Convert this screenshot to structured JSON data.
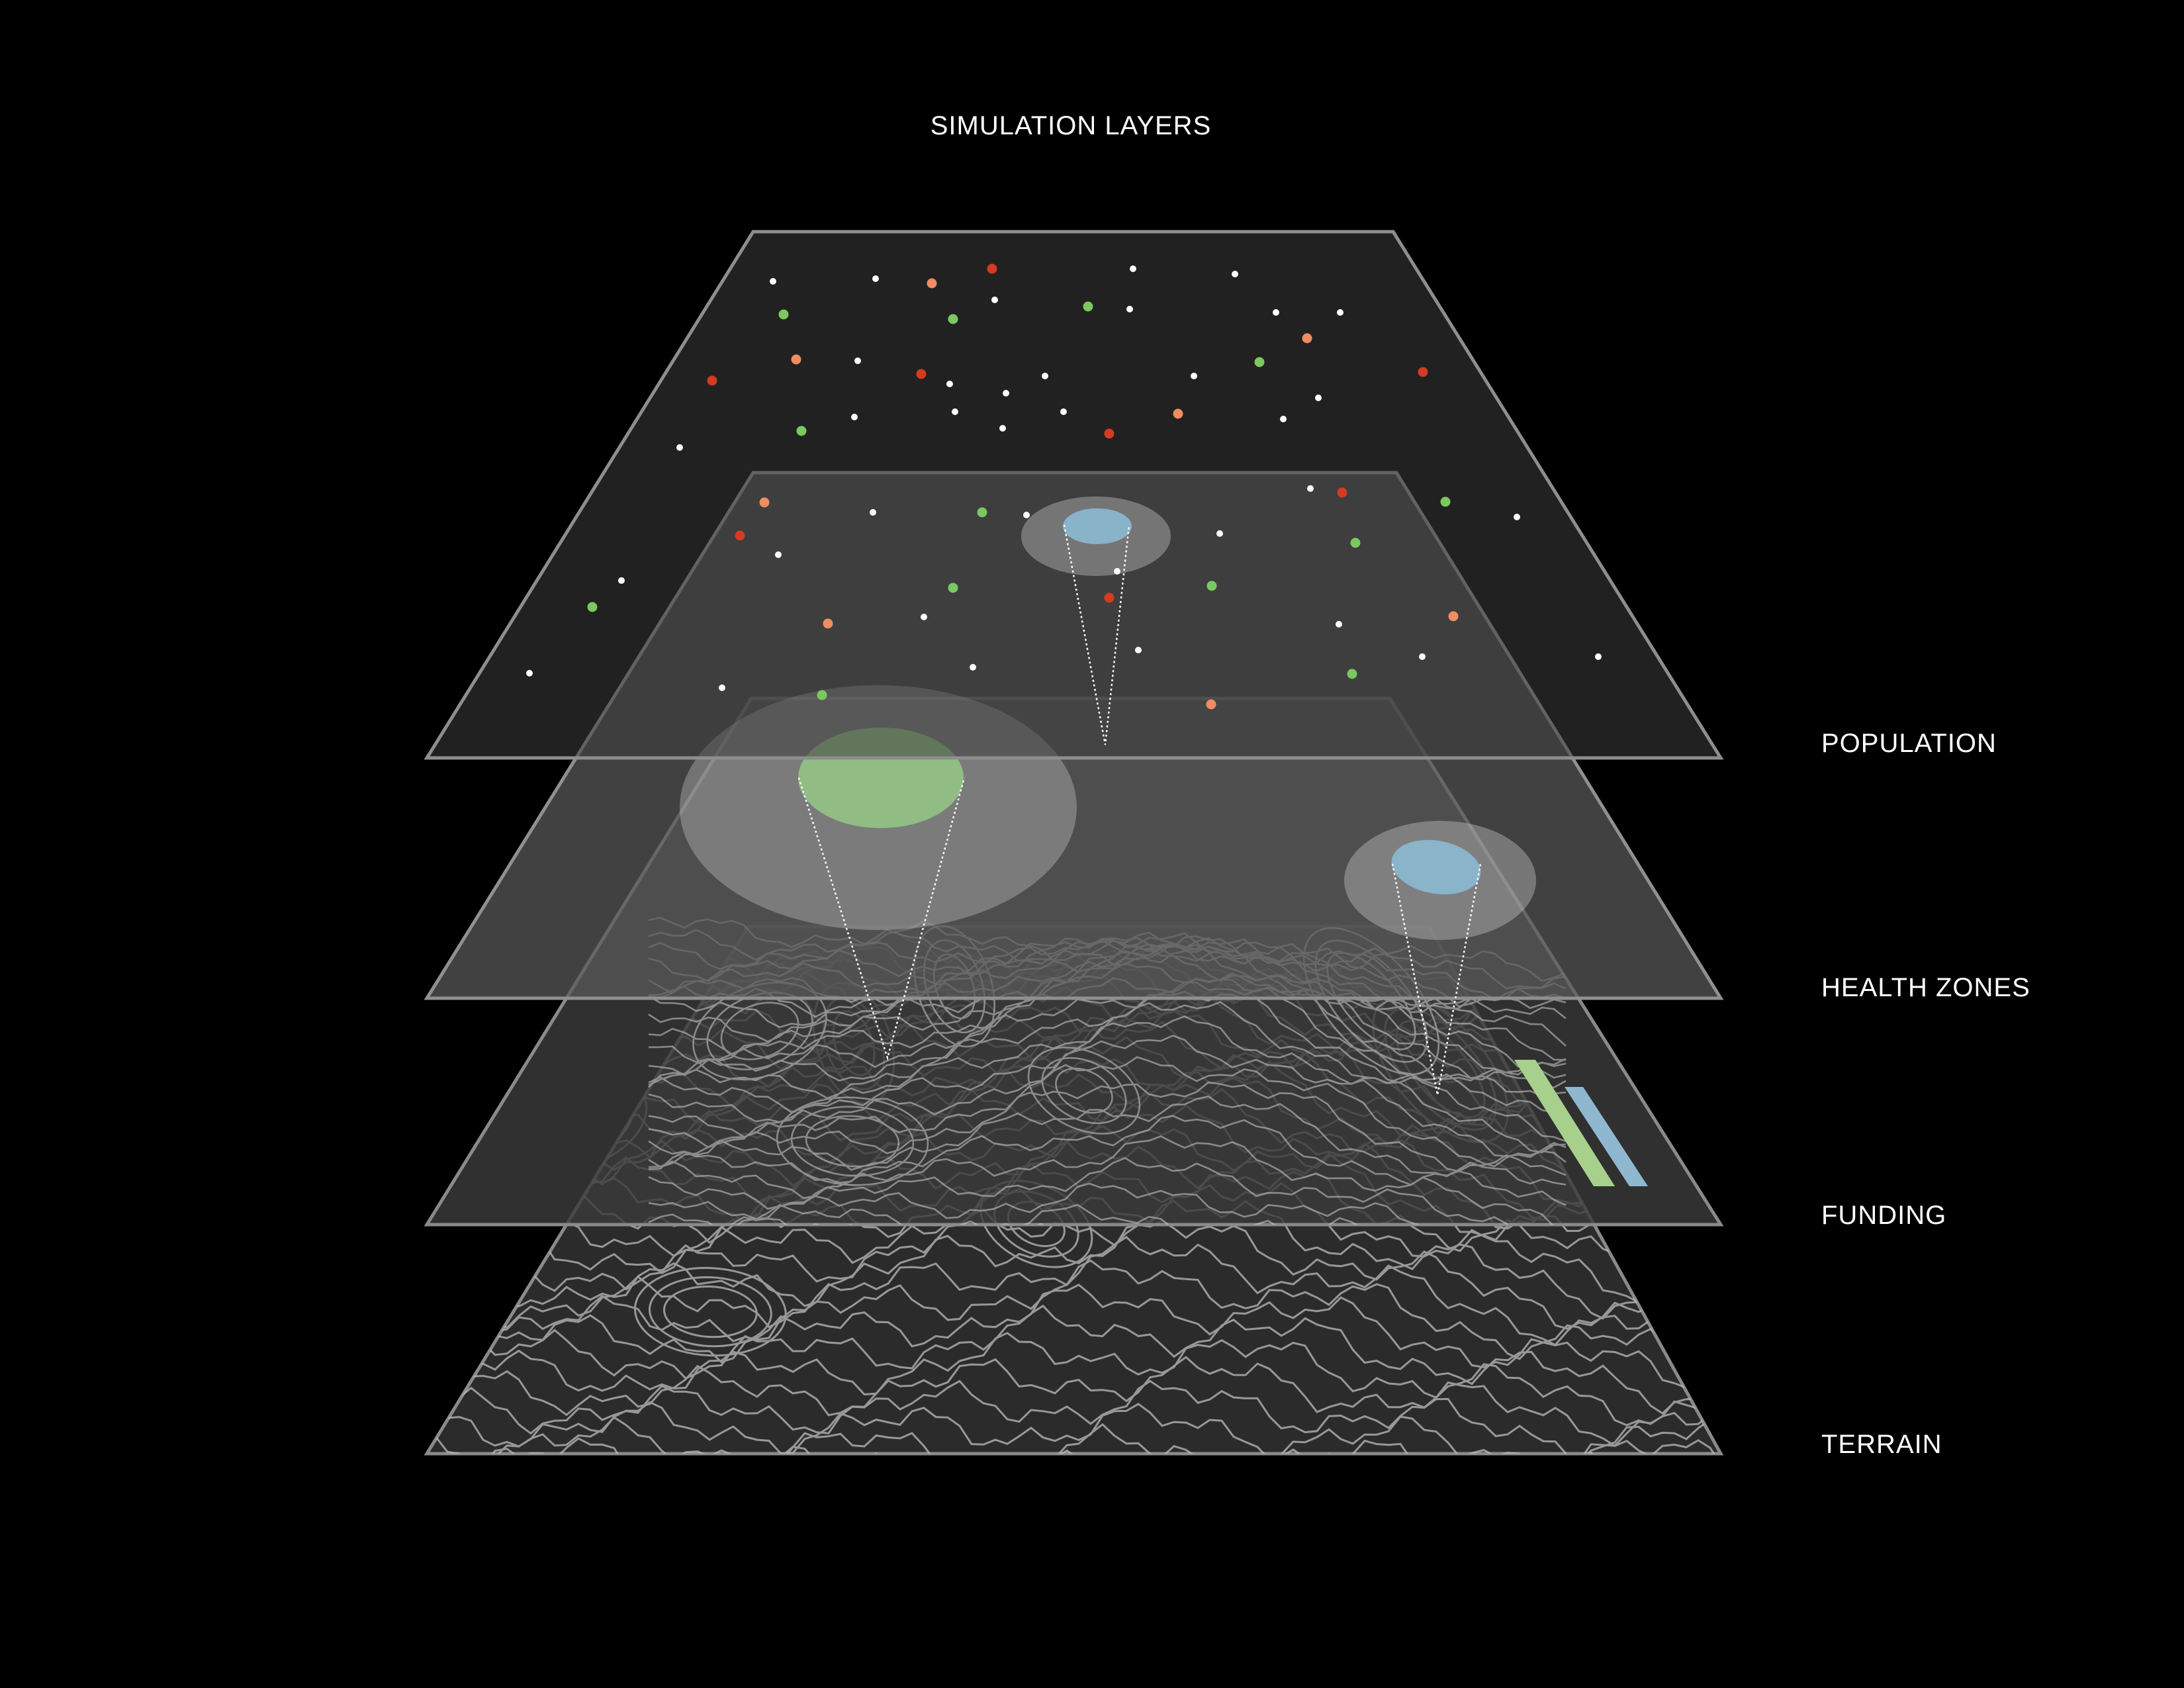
{
  "title": "SIMULATION LAYERS",
  "layers": [
    {
      "label": "POPULATION"
    },
    {
      "label": "HEALTH ZONES"
    },
    {
      "label": "FUNDING"
    },
    {
      "label": "TERRAIN"
    }
  ],
  "colors": {
    "background": "#000000",
    "plane_fill": "#2d2d2d",
    "plane_edge": "#8a8a8a",
    "dot_white": "#ffffff",
    "dot_green": "#7cc860",
    "dot_red": "#d33b22",
    "dot_orange": "#f08c62",
    "zone_green": "#94c385",
    "zone_blue": "#8bbad3",
    "halo": "#d8d8d8",
    "funding_green": "#a8d08d",
    "funding_blue": "#8fb8d0",
    "contour": "#bdbdbd"
  }
}
